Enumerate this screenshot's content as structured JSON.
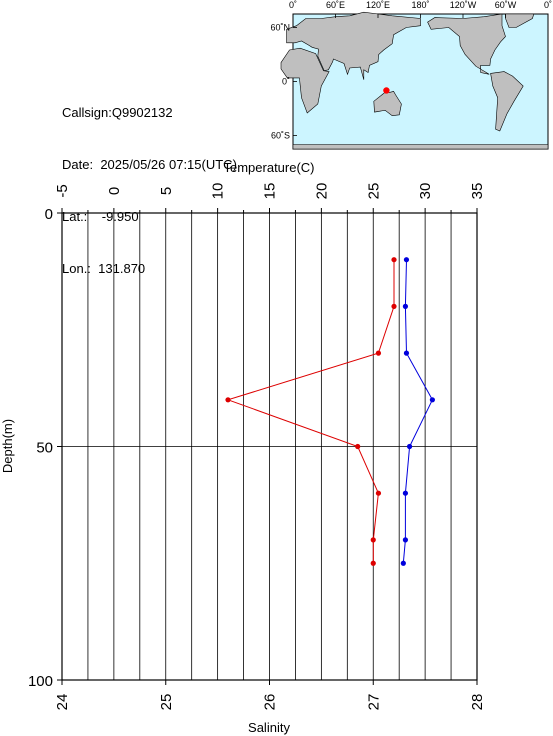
{
  "station": {
    "callsign_label": "Callsign:",
    "callsign": "Q9902132",
    "date_label": "Date:",
    "date": "2025/05/26 07:15(UTC)",
    "lat_label": "Lat.:",
    "lat": "-9.950",
    "lon_label": "Lon.:",
    "lon": "131.870"
  },
  "map": {
    "lon_ticks": [
      "0˚",
      "60˚E",
      "120˚E",
      "180˚",
      "120˚W",
      "60˚W",
      "0˚"
    ],
    "lat_ticks": [
      "60˚N",
      "0˚",
      "60˚S"
    ],
    "ocean_color": "#ccf5ff",
    "land_color": "#bfbfbf",
    "marker_color": "#ff0000",
    "marker": {
      "lon": 131.87,
      "lat": -9.95
    }
  },
  "chart_data": {
    "type": "line",
    "xlabel_top": "Temperature(C)",
    "xlabel_bottom": "Salinity",
    "ylabel": "Depth(m)",
    "temperature_range": [
      -5,
      35
    ],
    "temperature_ticks": [
      "-5",
      "0",
      "5",
      "10",
      "15",
      "20",
      "25",
      "30",
      "35"
    ],
    "salinity_range": [
      24,
      28
    ],
    "salinity_ticks": [
      "24",
      "25",
      "26",
      "27",
      "28"
    ],
    "depth_range": [
      0,
      100
    ],
    "depth_ticks": [
      "0",
      "50",
      "100"
    ],
    "series": [
      {
        "color": "#dd0000",
        "axis": "salinity",
        "points": [
          [
            27.2,
            10
          ],
          [
            27.2,
            20
          ],
          [
            27.05,
            30
          ],
          [
            25.6,
            40
          ],
          [
            26.85,
            50
          ],
          [
            27.05,
            60
          ],
          [
            27.0,
            70
          ],
          [
            27.0,
            75
          ]
        ]
      },
      {
        "color": "#0000dd",
        "axis": "temperature",
        "points": [
          [
            28.2,
            10
          ],
          [
            28.1,
            20
          ],
          [
            28.2,
            30
          ],
          [
            30.7,
            40
          ],
          [
            28.5,
            50
          ],
          [
            28.1,
            60
          ],
          [
            28.1,
            70
          ],
          [
            27.9,
            75
          ]
        ]
      }
    ]
  }
}
